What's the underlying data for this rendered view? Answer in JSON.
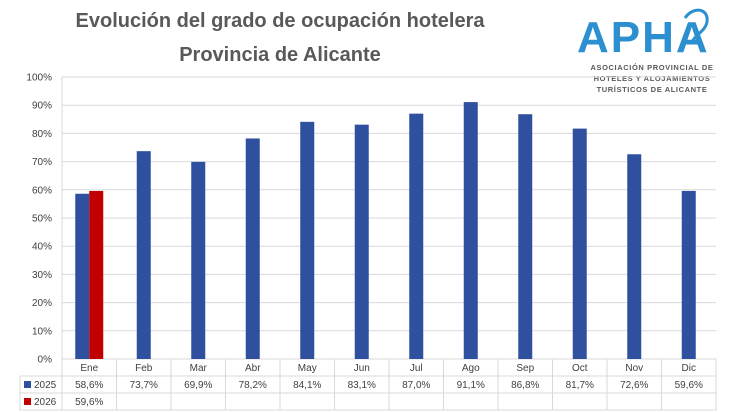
{
  "title_line1": "Evolución del grado de ocupación hotelera",
  "title_line2": "Provincia de Alicante",
  "logo": {
    "text": "APHA",
    "subtitle_lines": [
      "ASOCIACIÓN PROVINCIAL DE",
      "HOTELES Y ALOJAMIENTOS",
      "TURÍSTICOS DE ALICANTE"
    ]
  },
  "colors": {
    "series_2025": "#2F4F9F",
    "series_2026": "#C00000",
    "grid": "#D9D9D9",
    "text": "#404040",
    "logo_blue": "#2B8FD0"
  },
  "chart_data": {
    "type": "bar",
    "title": "Evolución del grado de ocupación hotelera",
    "subtitle": "Provincia de Alicante",
    "categories": [
      "Ene",
      "Feb",
      "Mar",
      "Abr",
      "May",
      "Jun",
      "Jul",
      "Ago",
      "Sep",
      "Oct",
      "Nov",
      "Dic"
    ],
    "series": [
      {
        "name": "2025",
        "color": "#2F4F9F",
        "values": [
          58.6,
          73.7,
          69.9,
          78.2,
          84.1,
          83.1,
          87.0,
          91.1,
          86.8,
          81.7,
          72.6,
          59.6
        ],
        "labels": [
          "58,6%",
          "73,7%",
          "69,9%",
          "78,2%",
          "84,1%",
          "83,1%",
          "87,0%",
          "91,1%",
          "86,8%",
          "81,7%",
          "72,6%",
          "59,6%"
        ]
      },
      {
        "name": "2026",
        "color": "#C00000",
        "values": [
          59.6,
          null,
          null,
          null,
          null,
          null,
          null,
          null,
          null,
          null,
          null,
          null
        ],
        "labels": [
          "59,6%",
          "",
          "",
          "",
          "",
          "",
          "",
          "",
          "",
          "",
          "",
          ""
        ]
      }
    ],
    "ylim": [
      0,
      100
    ],
    "yticks": [
      0,
      10,
      20,
      30,
      40,
      50,
      60,
      70,
      80,
      90,
      100
    ],
    "ytick_labels": [
      "0%",
      "10%",
      "20%",
      "30%",
      "40%",
      "50%",
      "60%",
      "70%",
      "80%",
      "90%",
      "100%"
    ],
    "grid": true,
    "legend": "data-table-below",
    "xlabel": "",
    "ylabel": ""
  }
}
